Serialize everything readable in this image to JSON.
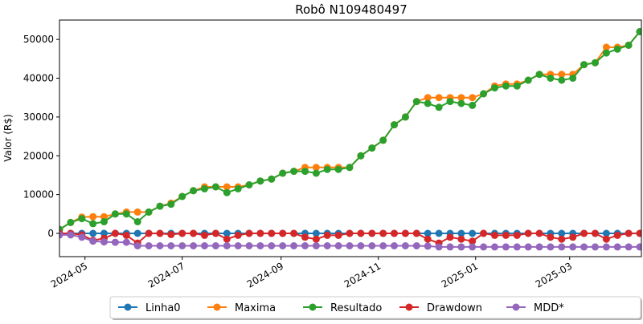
{
  "chart_data": {
    "type": "line",
    "title": "Robô N109480497",
    "xlabel": "",
    "ylabel": "Valor (R$)",
    "xlim": [
      "2024-04-15",
      "2025-04-15"
    ],
    "ylim": [
      -6000,
      55000
    ],
    "x_ticks": [
      "2024-05",
      "2024-07",
      "2024-09",
      "2024-11",
      "2025-01",
      "2025-03"
    ],
    "x_tick_dates": [
      "2024-05-01",
      "2024-07-01",
      "2024-09-01",
      "2024-11-01",
      "2025-01-01",
      "2025-03-01"
    ],
    "y_ticks": [
      "0",
      "10000",
      "20000",
      "30000",
      "40000",
      "50000"
    ],
    "y_tick_values": [
      0,
      10000,
      20000,
      30000,
      40000,
      50000
    ],
    "grid": false,
    "legend": "bottom-center",
    "x": [
      "2024-04-15",
      "2024-04-22",
      "2024-04-29",
      "2024-05-06",
      "2024-05-13",
      "2024-05-20",
      "2024-05-27",
      "2024-06-03",
      "2024-06-10",
      "2024-06-17",
      "2024-06-24",
      "2024-07-01",
      "2024-07-08",
      "2024-07-15",
      "2024-07-22",
      "2024-07-29",
      "2024-08-05",
      "2024-08-12",
      "2024-08-19",
      "2024-08-26",
      "2024-09-02",
      "2024-09-09",
      "2024-09-16",
      "2024-09-23",
      "2024-09-30",
      "2024-10-07",
      "2024-10-14",
      "2024-10-21",
      "2024-10-28",
      "2024-11-04",
      "2024-11-11",
      "2024-11-18",
      "2024-11-25",
      "2024-12-02",
      "2024-12-09",
      "2024-12-16",
      "2024-12-23",
      "2024-12-30",
      "2025-01-06",
      "2025-01-13",
      "2025-01-20",
      "2025-01-27",
      "2025-02-03",
      "2025-02-10",
      "2025-02-17",
      "2025-02-24",
      "2025-03-03",
      "2025-03-10",
      "2025-03-17",
      "2025-03-24",
      "2025-03-31",
      "2025-04-07",
      "2025-04-14"
    ],
    "series": [
      {
        "name": "Linha0",
        "color": "#1f77b4",
        "values": [
          0,
          0,
          0,
          0,
          0,
          0,
          0,
          0,
          0,
          0,
          0,
          0,
          0,
          0,
          0,
          0,
          0,
          0,
          0,
          0,
          0,
          0,
          0,
          0,
          0,
          0,
          0,
          0,
          0,
          0,
          0,
          0,
          0,
          0,
          0,
          0,
          0,
          0,
          0,
          0,
          0,
          0,
          0,
          0,
          0,
          0,
          0,
          0,
          0,
          0,
          0,
          0,
          0
        ]
      },
      {
        "name": "Maxima",
        "color": "#ff7f0e",
        "values": [
          1000,
          2800,
          4200,
          4300,
          4300,
          5000,
          5500,
          5500,
          5500,
          7000,
          7800,
          9500,
          11000,
          12000,
          12000,
          12000,
          12000,
          12500,
          13500,
          14000,
          15500,
          16000,
          17000,
          17000,
          17000,
          17000,
          17000,
          20000,
          22000,
          24000,
          28000,
          30000,
          34000,
          35000,
          35000,
          35000,
          35000,
          35000,
          36000,
          38000,
          38500,
          38500,
          39500,
          41000,
          41000,
          41000,
          41000,
          43500,
          44000,
          48000,
          48000,
          48500,
          52000
        ]
      },
      {
        "name": "Resultado",
        "color": "#2ca02c",
        "values": [
          1000,
          2800,
          3800,
          2500,
          3000,
          5000,
          5000,
          3000,
          5500,
          7000,
          7500,
          9500,
          11000,
          11500,
          12000,
          10500,
          11500,
          12500,
          13500,
          14000,
          15500,
          16000,
          16000,
          15500,
          16500,
          16500,
          17000,
          20000,
          22000,
          24000,
          28000,
          30000,
          34000,
          33500,
          32500,
          34000,
          33500,
          33000,
          36000,
          37500,
          38000,
          38000,
          39500,
          41000,
          40000,
          39500,
          40000,
          43500,
          44000,
          46500,
          47500,
          48500,
          52000
        ]
      },
      {
        "name": "Drawdown",
        "color": "#d62728",
        "values": [
          0,
          0,
          -400,
          -1800,
          -1300,
          0,
          -500,
          -2500,
          0,
          0,
          -300,
          0,
          0,
          -500,
          0,
          -1500,
          -500,
          0,
          0,
          0,
          0,
          0,
          -1000,
          -1500,
          -500,
          -500,
          0,
          0,
          0,
          0,
          0,
          0,
          0,
          -1500,
          -2500,
          -1000,
          -1500,
          -2000,
          0,
          -500,
          -500,
          -500,
          0,
          0,
          -1000,
          -1500,
          -1000,
          0,
          0,
          -1500,
          -500,
          0,
          0
        ]
      },
      {
        "name": "MDD*",
        "color": "#9467bd",
        "values": [
          -400,
          -400,
          -1000,
          -2000,
          -2200,
          -2300,
          -2300,
          -3200,
          -3200,
          -3200,
          -3200,
          -3200,
          -3200,
          -3200,
          -3200,
          -3200,
          -3200,
          -3200,
          -3200,
          -3200,
          -3200,
          -3200,
          -3200,
          -3200,
          -3200,
          -3200,
          -3200,
          -3200,
          -3200,
          -3200,
          -3200,
          -3200,
          -3200,
          -3300,
          -3500,
          -3500,
          -3500,
          -3500,
          -3500,
          -3500,
          -3500,
          -3500,
          -3500,
          -3500,
          -3500,
          -3500,
          -3500,
          -3500,
          -3500,
          -3500,
          -3500,
          -3500,
          -3500
        ]
      }
    ]
  }
}
